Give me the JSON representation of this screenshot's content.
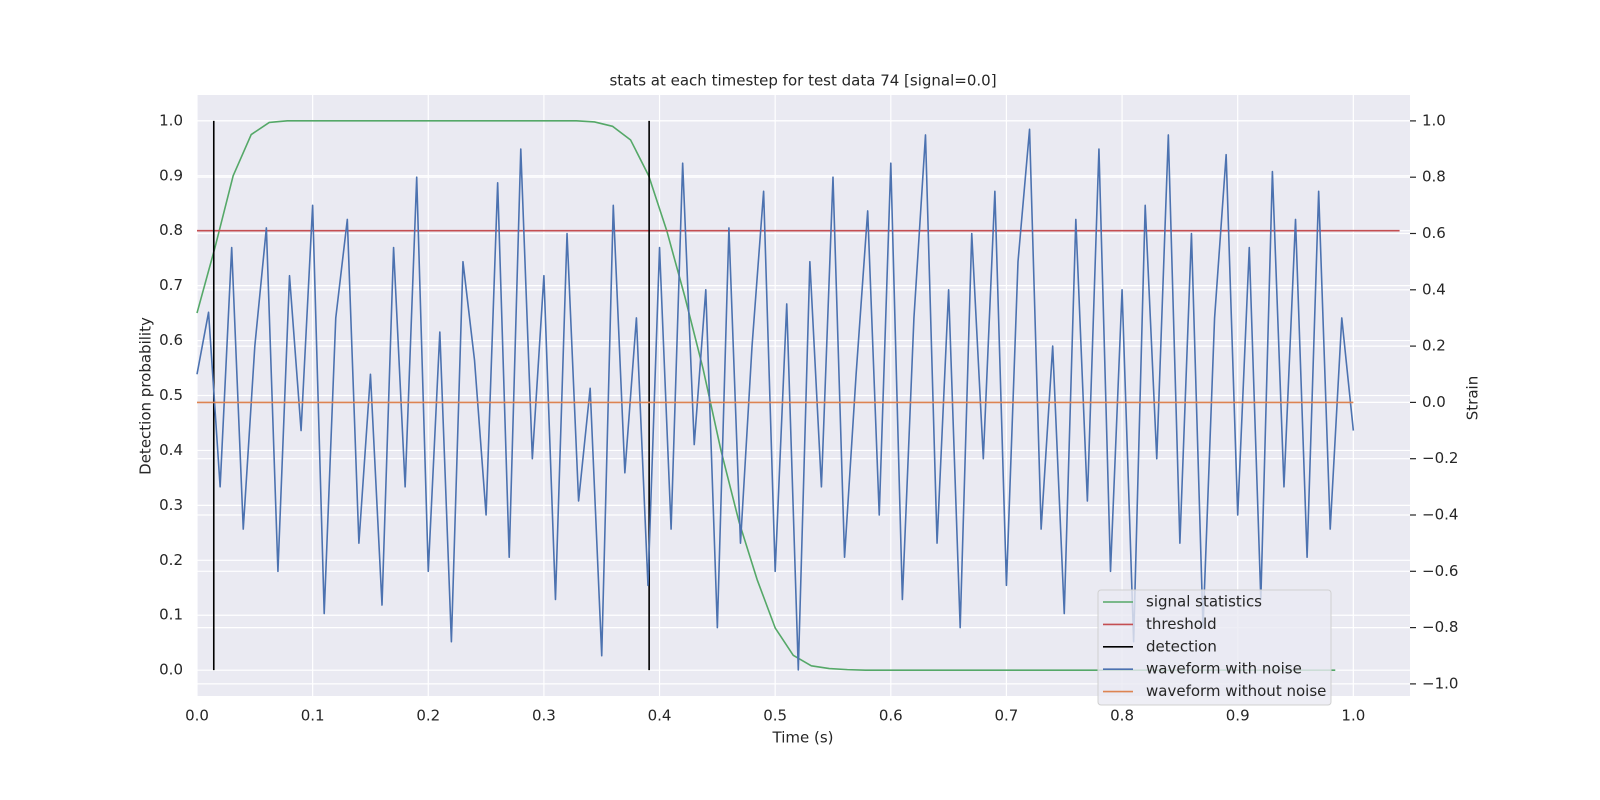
{
  "chart_data": {
    "type": "line",
    "title": "stats at each timestep for test data 74 [signal=0.0]",
    "xlabel": "Time (s)",
    "ylabel": "Detection probability",
    "y2label": "Strain",
    "xlim": [
      0,
      1.049
    ],
    "ylim": [
      -0.047,
      1.047
    ],
    "y2lim": [
      -1.043,
      1.092
    ],
    "xticks": [
      {
        "value": 0,
        "label": "0.0"
      },
      0.1,
      0.2,
      0.3,
      0.4,
      0.5,
      0.6,
      0.7,
      0.8,
      0.9,
      {
        "value": 1,
        "label": "1.0"
      }
    ],
    "yticks": [
      {
        "value": 0,
        "label": "0.0"
      },
      0.1,
      0.2,
      0.3,
      0.4,
      0.5,
      0.6,
      0.7,
      0.8,
      0.9,
      {
        "value": 1,
        "label": "1.0"
      }
    ],
    "y2ticks": [
      {
        "value": -1,
        "label": "−1.0"
      },
      {
        "value": -0.8,
        "label": "−0.8"
      },
      {
        "value": -0.6,
        "label": "−0.6"
      },
      {
        "value": -0.4,
        "label": "−0.4"
      },
      {
        "value": -0.2,
        "label": "−0.2"
      },
      {
        "value": 0,
        "label": "0.0"
      },
      0.2,
      0.4,
      0.6,
      0.8,
      {
        "value": 1,
        "label": "1.0"
      }
    ],
    "grid": true,
    "legend": "lower right",
    "series": [
      {
        "name": "signal statistics",
        "color": "#55a868",
        "x": [
          0,
          0.015625,
          0.03125,
          0.046875,
          0.0625,
          0.078125,
          0.09375,
          0.109375,
          0.125,
          0.140625,
          0.15625,
          0.171875,
          0.1875,
          0.203125,
          0.21875,
          0.234375,
          0.25,
          0.265625,
          0.28125,
          0.296875,
          0.3125,
          0.328125,
          0.34375,
          0.359375,
          0.375,
          0.390625,
          0.40625,
          0.421875,
          0.4375,
          0.453125,
          0.46875,
          0.484375,
          0.5,
          0.515625,
          0.53125,
          0.546875,
          0.5625,
          0.578125,
          0.59375,
          0.609375,
          0.625,
          0.640625,
          0.65625,
          0.671875,
          0.6875,
          0.703125,
          0.71875,
          0.734375,
          0.75,
          0.765625,
          0.78125,
          0.796875,
          0.8125,
          0.828125,
          0.84375,
          0.859375,
          0.875,
          0.890625,
          0.90625,
          0.921875,
          0.9375,
          0.953125,
          0.96875,
          0.984375
        ],
        "values": [
          0.65,
          0.77,
          0.9,
          0.975,
          0.997,
          1,
          1,
          1,
          1,
          1,
          1,
          1,
          1,
          1,
          1,
          1,
          1,
          1,
          1,
          1,
          1,
          1,
          0.998,
          0.99,
          0.965,
          0.9,
          0.8,
          0.68,
          0.55,
          0.4,
          0.27,
          0.165,
          0.077,
          0.027,
          0.008,
          0.003,
          0.001,
          0,
          0,
          0,
          0,
          0,
          0,
          0,
          0,
          0,
          0,
          0,
          0,
          0,
          0,
          0,
          0,
          0,
          0,
          0,
          0,
          0,
          0,
          0,
          0,
          0,
          0,
          0
        ]
      },
      {
        "name": "threshold",
        "color": "#c44e52",
        "x": [
          0,
          1.04
        ],
        "values": [
          0.8,
          0.8
        ]
      },
      {
        "name": "detection",
        "color": "#000000",
        "x": [
          0.0145,
          0.0145,
          null,
          0.391,
          0.391
        ],
        "values": [
          0,
          1,
          null,
          0,
          1
        ]
      },
      {
        "name": "waveform with noise",
        "color": "#4c72b0",
        "axis": "y2",
        "x": [
          0,
          0.01,
          0.02,
          0.03,
          0.04,
          0.05,
          0.06,
          0.07,
          0.08,
          0.09,
          0.1,
          0.11,
          0.12,
          0.13,
          0.14,
          0.15,
          0.16,
          0.17,
          0.18,
          0.19,
          0.2,
          0.21,
          0.22,
          0.23,
          0.24,
          0.25,
          0.26,
          0.27,
          0.28,
          0.29,
          0.3,
          0.31,
          0.32,
          0.33,
          0.34,
          0.35,
          0.36,
          0.37,
          0.38,
          0.39,
          0.4,
          0.41,
          0.42,
          0.43,
          0.44,
          0.45,
          0.46,
          0.47,
          0.48,
          0.49,
          0.5,
          0.51,
          0.52,
          0.53,
          0.54,
          0.55,
          0.56,
          0.57,
          0.58,
          0.59,
          0.6,
          0.61,
          0.62,
          0.63,
          0.64,
          0.65,
          0.66,
          0.67,
          0.68,
          0.69,
          0.7,
          0.71,
          0.72,
          0.73,
          0.74,
          0.75,
          0.76,
          0.77,
          0.78,
          0.79,
          0.8,
          0.81,
          0.82,
          0.83,
          0.84,
          0.85,
          0.86,
          0.87,
          0.88,
          0.89,
          0.9,
          0.91,
          0.92,
          0.93,
          0.94,
          0.95,
          0.96,
          0.97,
          0.98,
          0.99,
          1
        ],
        "values": [
          0.1,
          0.32,
          -0.3,
          0.55,
          -0.45,
          0.2,
          0.62,
          -0.6,
          0.45,
          -0.1,
          0.7,
          -0.75,
          0.3,
          0.65,
          -0.5,
          0.1,
          -0.72,
          0.55,
          -0.3,
          0.8,
          -0.6,
          0.25,
          -0.85,
          0.5,
          0.15,
          -0.4,
          0.78,
          -0.55,
          0.9,
          -0.2,
          0.45,
          -0.7,
          0.6,
          -0.35,
          0.05,
          -0.9,
          0.7,
          -0.25,
          0.3,
          -0.65,
          0.55,
          -0.45,
          0.85,
          -0.15,
          0.4,
          -0.8,
          0.62,
          -0.5,
          0.2,
          0.75,
          -0.6,
          0.35,
          -0.95,
          0.5,
          -0.3,
          0.8,
          -0.55,
          0.1,
          0.68,
          -0.4,
          0.85,
          -0.7,
          0.3,
          0.95,
          -0.5,
          0.4,
          -0.8,
          0.6,
          -0.2,
          0.75,
          -0.65,
          0.5,
          0.97,
          -0.45,
          0.2,
          -0.75,
          0.65,
          -0.35,
          0.9,
          -0.6,
          0.4,
          -0.85,
          0.7,
          -0.2,
          0.95,
          -0.5,
          0.6,
          -0.8,
          0.3,
          0.88,
          -0.4,
          0.55,
          -0.7,
          0.82,
          -0.3,
          0.65,
          -0.55,
          0.75,
          -0.45,
          0.3,
          -0.1
        ]
      },
      {
        "name": "waveform without noise",
        "color": "#dd8452",
        "axis": "y2",
        "x": [
          0,
          1
        ],
        "values": [
          0,
          0
        ]
      }
    ]
  }
}
